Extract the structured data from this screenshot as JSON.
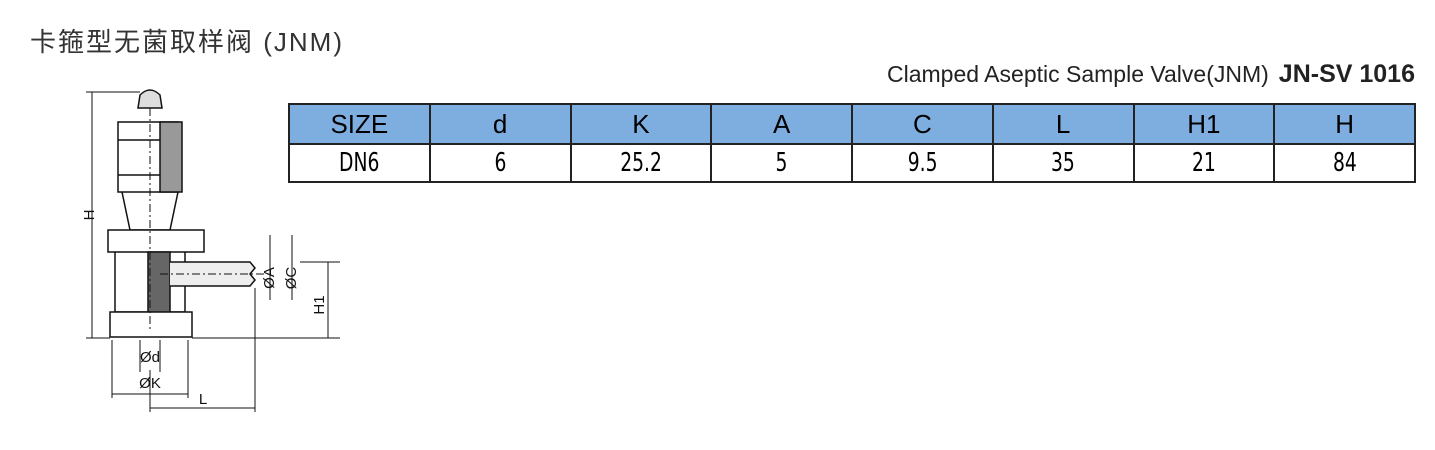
{
  "header": {
    "title": "卡箍型无菌取样阀 (JNM)",
    "subtitle": "Clamped Aseptic Sample Valve(JNM)",
    "model": "JN-SV 1016"
  },
  "table": {
    "columns": [
      "SIZE",
      "d",
      "K",
      "A",
      "C",
      "L",
      "H1",
      "H"
    ],
    "rows": [
      [
        "DN6",
        6,
        25.2,
        5,
        9.5,
        35,
        21,
        84
      ]
    ]
  },
  "drawing": {
    "labels": [
      "H",
      "ØA",
      "ØC",
      "H1",
      "Ød",
      "ØK",
      "L"
    ]
  }
}
